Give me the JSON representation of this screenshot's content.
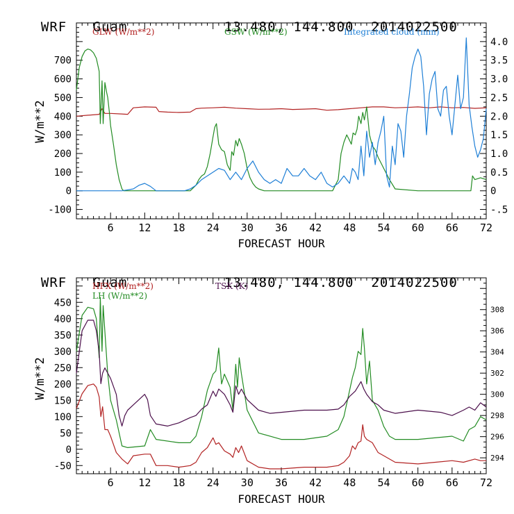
{
  "charts": [
    {
      "header": {
        "model": "WRF",
        "location": "Guam",
        "coords": "13.480, 144.800",
        "init": "2014022500"
      },
      "xlabel": "FORECAST HOUR",
      "ylabel": "W/m**2",
      "xticks": [
        "6",
        "12",
        "18",
        "24",
        "30",
        "36",
        "42",
        "48",
        "54",
        "60",
        "66",
        "72"
      ],
      "yticks_left": [
        "-100",
        "0",
        "100",
        "200",
        "300",
        "400",
        "500",
        "600",
        "700"
      ],
      "yticks_right": [
        "-.5",
        "0",
        "0.5",
        "1.0",
        "1.5",
        "2.0",
        "2.5",
        "3.0",
        "3.5",
        "4.0"
      ],
      "legend": [
        {
          "label": "GLW (W/m**2)",
          "color": "#b22222"
        },
        {
          "label": "GSW (W/m**2)",
          "color": "#228b22"
        },
        {
          "label": "Integrated cloud (mm)",
          "color": "#1e7fd6"
        }
      ]
    },
    {
      "header": {
        "model": "WRF",
        "location": "Guam",
        "coords": "13.480, 144.800",
        "init": "2014022500"
      },
      "xlabel": "FORECAST HOUR",
      "ylabel": "W/m**2",
      "xticks": [
        "6",
        "12",
        "18",
        "24",
        "30",
        "36",
        "42",
        "48",
        "54",
        "60",
        "66",
        "72"
      ],
      "yticks_left": [
        "-50",
        "0",
        "50",
        "100",
        "150",
        "200",
        "250",
        "300",
        "350",
        "400",
        "450"
      ],
      "yticks_right": [
        "294",
        "296",
        "298",
        "300",
        "302",
        "304",
        "306",
        "308"
      ],
      "legend": [
        {
          "label": "HFX (W/m**2)",
          "color": "#b22222"
        },
        {
          "label": "LH  (W/m**2)",
          "color": "#228b22"
        },
        {
          "label": "TSK (K)",
          "color": "#4b0f4b"
        }
      ]
    }
  ],
  "chart_data": [
    {
      "type": "line",
      "title": "WRF Guam 13.480, 144.800 2014022500",
      "xlabel": "FORECAST HOUR",
      "ylabel": "W/m**2",
      "xlim": [
        0,
        72
      ],
      "ylim": [
        -150,
        900
      ],
      "y2lim": [
        -0.75,
        4.5
      ],
      "series": [
        {
          "name": "GLW (W/m**2)",
          "axis": "left",
          "color": "#b22222",
          "x": [
            0,
            2,
            4,
            4.5,
            5,
            6,
            8,
            9,
            10,
            12,
            14,
            14.5,
            16,
            18,
            20,
            21,
            22,
            24,
            26,
            28,
            30,
            32,
            34,
            36,
            38,
            40,
            42,
            44,
            46,
            48,
            50,
            52,
            54,
            56,
            58,
            60,
            62,
            64,
            66,
            68,
            70,
            72
          ],
          "y": [
            400,
            405,
            410,
            440,
            415,
            415,
            412,
            410,
            445,
            450,
            448,
            425,
            422,
            420,
            422,
            440,
            443,
            445,
            448,
            443,
            440,
            437,
            438,
            440,
            436,
            438,
            440,
            432,
            435,
            440,
            445,
            450,
            450,
            445,
            447,
            450,
            445,
            450,
            445,
            447,
            442,
            445
          ]
        },
        {
          "name": "GSW (W/m**2)",
          "axis": "left",
          "color": "#228b22",
          "x": [
            0,
            0.5,
            1,
            1.5,
            2,
            2.5,
            3,
            3.5,
            4,
            4.2,
            4.5,
            4.7,
            5,
            5.3,
            5.5,
            5.8,
            6,
            6.5,
            7,
            7.5,
            8,
            8.3,
            9,
            12,
            18,
            20,
            21,
            21.5,
            22,
            22.5,
            23,
            23.5,
            24,
            24.3,
            24.6,
            25,
            25.5,
            26,
            26.5,
            27,
            27.3,
            27.6,
            28,
            28.3,
            28.6,
            29,
            29.5,
            30,
            30.5,
            31,
            31.5,
            32,
            33,
            36,
            40,
            44,
            45,
            45.5,
            46,
            46.5,
            47,
            47.5,
            48,
            48.3,
            48.6,
            49,
            49.3,
            49.6,
            50,
            50.3,
            50.6,
            51,
            51.5,
            52,
            52.5,
            53,
            53.5,
            54,
            55,
            56,
            60,
            66,
            69,
            69.3,
            69.6,
            70,
            71,
            72
          ],
          "y": [
            540,
            660,
            720,
            750,
            760,
            755,
            740,
            710,
            640,
            360,
            590,
            360,
            580,
            530,
            500,
            420,
            350,
            250,
            140,
            60,
            10,
            0,
            0,
            0,
            0,
            0,
            30,
            60,
            80,
            90,
            130,
            200,
            290,
            340,
            360,
            250,
            220,
            210,
            140,
            110,
            210,
            190,
            270,
            240,
            280,
            250,
            200,
            120,
            70,
            40,
            20,
            10,
            0,
            0,
            0,
            0,
            0,
            30,
            60,
            200,
            260,
            300,
            270,
            250,
            310,
            300,
            330,
            400,
            360,
            420,
            380,
            450,
            300,
            240,
            220,
            180,
            150,
            120,
            60,
            10,
            0,
            0,
            0,
            0,
            80,
            60,
            70,
            60
          ]
        },
        {
          "name": "Integrated cloud (mm)",
          "axis": "right",
          "color": "#1e7fd6",
          "x": [
            0,
            5,
            8,
            10,
            11,
            12,
            13,
            14,
            15,
            16,
            18,
            19,
            20,
            21,
            22,
            23,
            24,
            25,
            26,
            27,
            28,
            29,
            30,
            31,
            32,
            33,
            34,
            35,
            36,
            37,
            38,
            39,
            40,
            41,
            42,
            43,
            44,
            45,
            46,
            47,
            48,
            48.5,
            49,
            49.5,
            50,
            50.5,
            51,
            51.5,
            52,
            52.5,
            53,
            53.5,
            54,
            54.5,
            55,
            55.5,
            56,
            56.5,
            57,
            57.5,
            58,
            58.5,
            59,
            59.5,
            60,
            60.5,
            61,
            61.5,
            62,
            62.5,
            63,
            63.5,
            64,
            64.5,
            65,
            65.5,
            66,
            66.5,
            67,
            67.5,
            68,
            68.5,
            69,
            69.5,
            70,
            70.5,
            71,
            71.5,
            72
          ],
          "y": [
            0,
            0,
            0,
            0.05,
            0.15,
            0.2,
            0.12,
            0,
            0,
            0,
            0,
            0,
            0.05,
            0.15,
            0.3,
            0.4,
            0.5,
            0.6,
            0.55,
            0.3,
            0.5,
            0.3,
            0.6,
            0.8,
            0.5,
            0.3,
            0.2,
            0.3,
            0.2,
            0.6,
            0.4,
            0.4,
            0.6,
            0.4,
            0.3,
            0.5,
            0.2,
            0.1,
            0.2,
            0.4,
            0.2,
            0.6,
            0.5,
            0.3,
            1.2,
            0.4,
            1.6,
            0.9,
            1.3,
            0.7,
            1.3,
            1.6,
            2.0,
            0.4,
            0.1,
            1.2,
            0.7,
            1.8,
            1.6,
            0.9,
            2.0,
            2.6,
            3.3,
            3.6,
            3.8,
            3.6,
            2.8,
            1.5,
            2.6,
            3.0,
            3.2,
            2.2,
            2.0,
            2.7,
            2.8,
            2.0,
            1.5,
            2.3,
            3.1,
            2.2,
            2.5,
            4.1,
            2.3,
            1.7,
            1.2,
            0.9,
            1.1,
            1.4,
            2.2
          ]
        }
      ]
    },
    {
      "type": "line",
      "title": "WRF Guam 13.480, 144.800 2014022500",
      "xlabel": "FORECAST HOUR",
      "ylabel": "W/m**2",
      "xlim": [
        0,
        72
      ],
      "ylim": [
        -75,
        525
      ],
      "y2lim": [
        292.5,
        311.0
      ],
      "series": [
        {
          "name": "HFX (W/m**2)",
          "axis": "left",
          "color": "#b22222",
          "x": [
            0,
            1,
            2,
            3,
            3.5,
            4,
            4.3,
            4.6,
            5,
            5.5,
            6,
            7,
            8,
            9,
            10,
            12,
            13,
            14,
            16,
            18,
            20,
            21,
            22,
            23,
            24,
            24.5,
            25,
            26,
            27,
            27.5,
            28,
            28.5,
            29,
            30,
            32,
            34,
            36,
            40,
            44,
            46,
            47,
            48,
            48.5,
            49,
            49.5,
            50,
            50.3,
            50.6,
            51,
            52,
            53,
            54,
            56,
            60,
            66,
            68,
            70,
            71,
            72
          ],
          "y": [
            125,
            170,
            195,
            200,
            190,
            160,
            100,
            130,
            60,
            60,
            40,
            -10,
            -30,
            -45,
            -20,
            -15,
            -15,
            -50,
            -50,
            -55,
            -50,
            -40,
            -10,
            5,
            35,
            15,
            20,
            -5,
            -15,
            -25,
            5,
            -10,
            10,
            -35,
            -55,
            -60,
            -60,
            -55,
            -55,
            -50,
            -40,
            -20,
            10,
            0,
            20,
            25,
            75,
            40,
            30,
            20,
            -10,
            -20,
            -40,
            -45,
            -35,
            -40,
            -30,
            -35,
            -35
          ]
        },
        {
          "name": "LH  (W/m**2)",
          "axis": "left",
          "color": "#228b22",
          "x": [
            0,
            1,
            2,
            3,
            3.5,
            4,
            4.2,
            4.5,
            4.7,
            5,
            5.5,
            6,
            7,
            8,
            9,
            12,
            13,
            14,
            18,
            20,
            21,
            22,
            23,
            24,
            24.5,
            25,
            25.5,
            26,
            27,
            27.5,
            28,
            28.3,
            28.6,
            29,
            30,
            32,
            36,
            40,
            44,
            46,
            47,
            48,
            48.5,
            49,
            49.5,
            50,
            50.3,
            50.6,
            51,
            51.5,
            52,
            53,
            54,
            55,
            56,
            60,
            66,
            68,
            69,
            70,
            71,
            72
          ],
          "y": [
            300,
            410,
            435,
            430,
            400,
            280,
            465,
            300,
            440,
            360,
            230,
            150,
            90,
            10,
            5,
            10,
            60,
            30,
            20,
            20,
            40,
            100,
            180,
            230,
            240,
            310,
            200,
            230,
            190,
            120,
            260,
            190,
            280,
            230,
            120,
            50,
            30,
            30,
            40,
            60,
            100,
            180,
            220,
            250,
            300,
            290,
            370,
            310,
            200,
            270,
            150,
            120,
            70,
            40,
            30,
            30,
            40,
            25,
            60,
            70,
            100,
            90
          ]
        },
        {
          "name": "TSK (K)",
          "axis": "right",
          "color": "#4b0f4b",
          "x": [
            0,
            1,
            2,
            3,
            3.5,
            4,
            4.3,
            4.6,
            5,
            5.5,
            6,
            7,
            7.5,
            8,
            8.5,
            9,
            10,
            12,
            12.5,
            13,
            14,
            16,
            18,
            20,
            21,
            22,
            23,
            24,
            24.5,
            25,
            26,
            27,
            27.5,
            28,
            28.5,
            29,
            30,
            32,
            34,
            36,
            40,
            44,
            46,
            47,
            48,
            49,
            50,
            50.5,
            51,
            52,
            53,
            54,
            56,
            60,
            64,
            66,
            68,
            69,
            70,
            71,
            72
          ],
          "y": [
            302,
            306,
            307,
            307,
            306,
            304,
            301,
            302,
            302.5,
            302,
            301.5,
            300,
            298,
            297,
            298,
            298.5,
            299,
            300,
            299.5,
            298,
            297.2,
            297,
            297.3,
            297.8,
            298,
            298.6,
            299,
            300.3,
            299.8,
            300.5,
            300,
            299,
            298.3,
            300.8,
            300,
            300.5,
            299.5,
            298.5,
            298.2,
            298.3,
            298.5,
            298.5,
            298.6,
            299,
            299.8,
            300.3,
            301.2,
            300.5,
            300,
            299.3,
            299,
            298.5,
            298.2,
            298.5,
            298.3,
            298,
            298.5,
            298.8,
            298.5,
            299.2,
            298.8
          ]
        }
      ]
    }
  ]
}
